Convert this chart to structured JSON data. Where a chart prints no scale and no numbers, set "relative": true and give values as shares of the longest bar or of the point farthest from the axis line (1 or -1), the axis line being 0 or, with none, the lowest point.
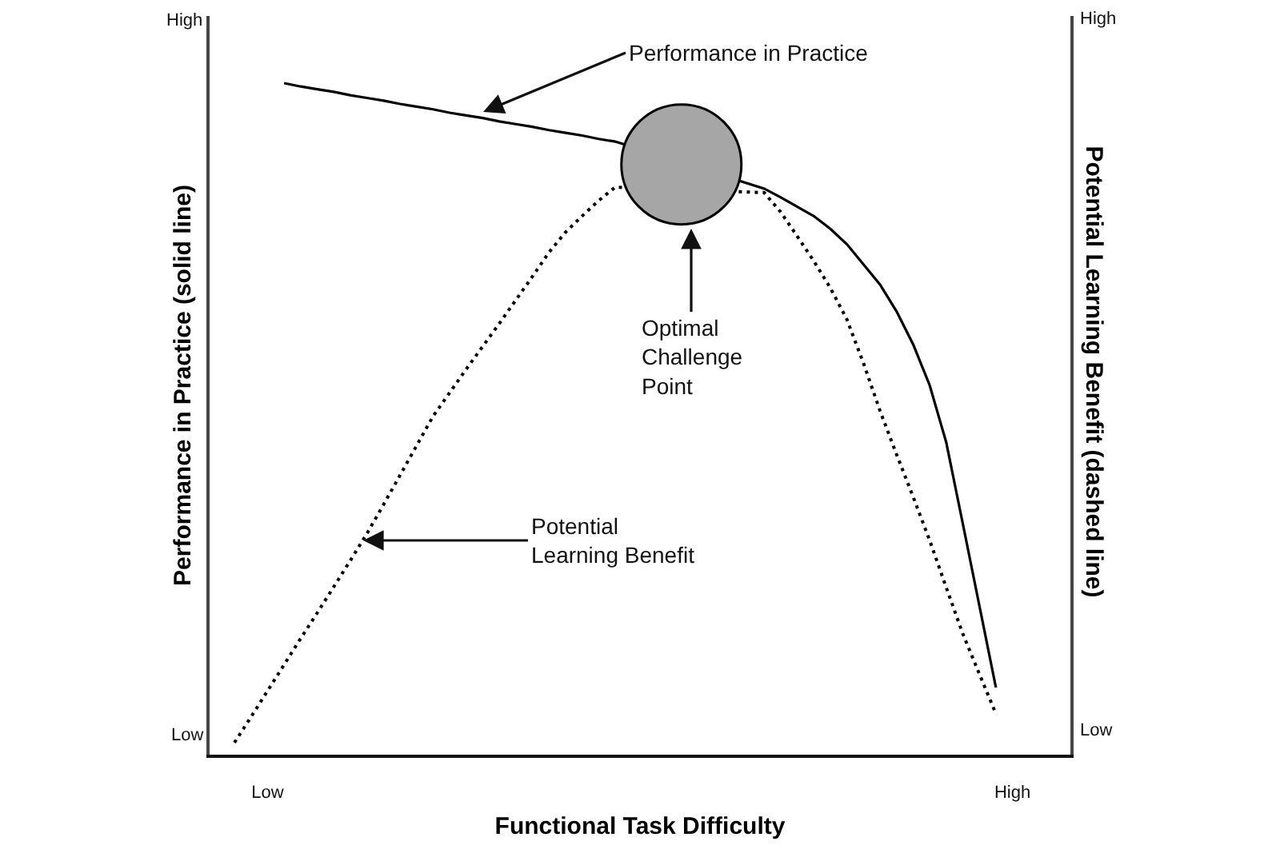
{
  "chart_data": {
    "type": "line",
    "relative": true,
    "xlabel": "Functional Task Difficulty",
    "ylabel": "Performance in Practice (solid line)",
    "y2label": "Potential Learning Benefit (dashed line)",
    "categories": [
      null,
      null,
      null,
      "Low",
      null,
      null,
      null,
      null,
      null,
      null,
      null,
      null,
      null,
      null,
      null,
      null,
      null,
      null,
      null,
      null,
      null,
      null,
      null,
      null,
      null,
      null,
      null,
      null,
      null,
      null,
      null,
      null,
      null,
      null,
      null,
      null,
      null,
      null,
      null,
      null,
      null,
      null,
      null,
      null,
      null,
      null,
      null,
      null,
      "High",
      null,
      null,
      null
    ],
    "series": [
      {
        "color": "#000000",
        "line_style": "solid",
        "values": [
          null,
          null,
          null,
          null,
          1.0,
          0.995,
          0.991,
          0.987,
          0.982,
          0.978,
          0.974,
          0.969,
          0.965,
          0.961,
          0.956,
          0.952,
          0.948,
          0.943,
          0.939,
          0.935,
          0.93,
          0.926,
          0.922,
          0.917,
          0.913,
          null,
          null,
          null,
          null,
          null,
          null,
          null,
          null,
          0.843,
          0.83,
          0.816,
          0.802,
          0.783,
          0.76,
          0.73,
          0.7,
          0.66,
          0.611,
          0.55,
          0.465,
          0.344,
          0.222,
          0.1,
          null,
          null,
          null,
          null
        ]
      },
      {
        "color": "#000000",
        "axis": "y2",
        "line_style": "dotted",
        "values": [
          null,
          0.018,
          0.056,
          0.095,
          0.134,
          0.173,
          0.211,
          0.25,
          0.289,
          0.329,
          0.372,
          0.416,
          0.46,
          0.504,
          0.539,
          0.574,
          0.608,
          0.642,
          0.677,
          0.712,
          0.748,
          0.778,
          0.802,
          0.825,
          0.845,
          null,
          null,
          null,
          null,
          null,
          null,
          null,
          null,
          0.837,
          0.808,
          0.772,
          0.735,
          0.695,
          0.648,
          0.583,
          0.512,
          0.447,
          0.384,
          0.319,
          0.249,
          0.18,
          0.12,
          0.061,
          null,
          null,
          null,
          null
        ]
      },
      {
        "type": "scatter",
        "color": "#a6a6a6",
        "marker": "circle",
        "values": [
          null,
          null,
          null,
          null,
          null,
          null,
          null,
          null,
          null,
          null,
          null,
          null,
          null,
          null,
          null,
          null,
          null,
          null,
          null,
          null,
          null,
          null,
          null,
          null,
          null,
          null,
          null,
          null,
          0.879,
          null,
          null,
          null,
          null,
          null,
          null,
          null,
          null,
          null,
          null,
          null,
          null,
          null,
          null,
          null,
          null,
          null,
          null,
          null,
          null,
          null,
          null,
          null
        ]
      }
    ],
    "annotations": [
      "Performance in Practice",
      "Optimal\nChallenge\nPoint",
      "Potential\nLearning Benefit",
      "High",
      "Low",
      "High",
      "Low"
    ]
  }
}
